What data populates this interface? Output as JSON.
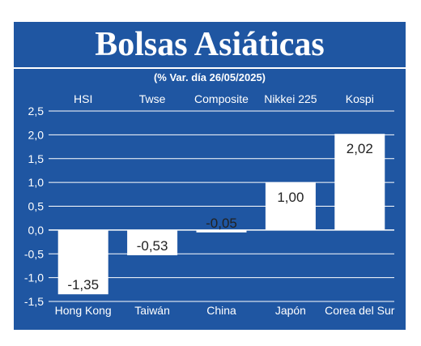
{
  "header": {
    "title": "Bolsas Asiáticas",
    "subtitle": "(% Var. día 26/05/2025)"
  },
  "colors": {
    "panel": "#1f56a2",
    "bar": "#ffffff",
    "grid": "#ffffff",
    "text": "#ffffff",
    "value_text": "#222222"
  },
  "chart_data": {
    "type": "bar",
    "title": "Bolsas Asiáticas",
    "subtitle": "(% Var. día 26/05/2025)",
    "indices": [
      "HSI",
      "Twse",
      "Composite",
      "Nikkei 225",
      "Kospi"
    ],
    "categories": [
      "Hong Kong",
      "Taiwán",
      "China",
      "Japón",
      "Corea del Sur"
    ],
    "values": [
      -1.35,
      -0.53,
      -0.05,
      1.0,
      2.02
    ],
    "value_labels": [
      "-1,35",
      "-0,53",
      "-0,05",
      "1,00",
      "2,02"
    ],
    "yticks": [
      2.5,
      2.0,
      1.5,
      1.0,
      0.5,
      0.0,
      -0.5,
      -1.0,
      -1.5
    ],
    "ytick_labels": [
      "2,5",
      "2,0",
      "1,5",
      "1,0",
      "0,5",
      "0,0",
      "-0,5",
      "-1,0",
      "-1,5"
    ],
    "ylim": [
      -1.5,
      2.5
    ],
    "xlabel": "",
    "ylabel": "",
    "grid": "horizontal",
    "legend": "none"
  }
}
